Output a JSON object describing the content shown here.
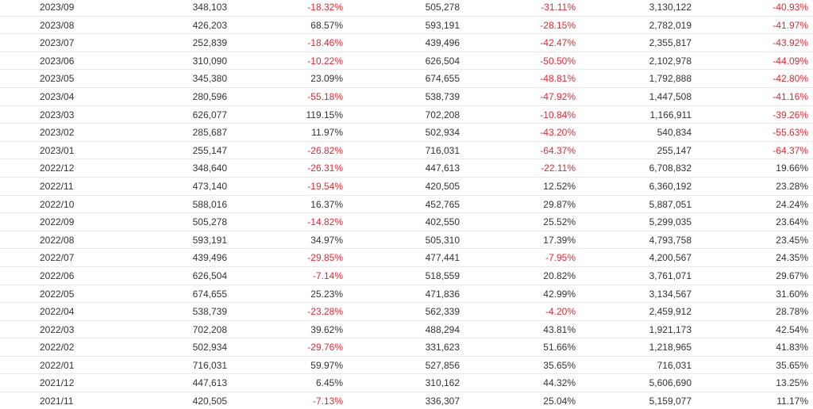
{
  "colors": {
    "negative": "#f5222d",
    "text": "#333333",
    "divider": "#e9e9e9"
  },
  "table": {
    "rows": [
      [
        "2023/09",
        "348,103",
        "-18.32%",
        "505,278",
        "-31.11%",
        "3,130,122",
        "-40.93%"
      ],
      [
        "2023/08",
        "426,203",
        "68.57%",
        "593,191",
        "-28.15%",
        "2,782,019",
        "-41.97%"
      ],
      [
        "2023/07",
        "252,839",
        "-18.46%",
        "439,496",
        "-42.47%",
        "2,355,817",
        "-43.92%"
      ],
      [
        "2023/06",
        "310,090",
        "-10.22%",
        "626,504",
        "-50.50%",
        "2,102,978",
        "-44.09%"
      ],
      [
        "2023/05",
        "345,380",
        "23.09%",
        "674,655",
        "-48.81%",
        "1,792,888",
        "-42.80%"
      ],
      [
        "2023/04",
        "280,596",
        "-55.18%",
        "538,739",
        "-47.92%",
        "1,447,508",
        "-41.16%"
      ],
      [
        "2023/03",
        "626,077",
        "119.15%",
        "702,208",
        "-10.84%",
        "1,166,911",
        "-39.26%"
      ],
      [
        "2023/02",
        "285,687",
        "11.97%",
        "502,934",
        "-43.20%",
        "540,834",
        "-55.63%"
      ],
      [
        "2023/01",
        "255,147",
        "-26.82%",
        "716,031",
        "-64.37%",
        "255,147",
        "-64.37%"
      ],
      [
        "2022/12",
        "348,640",
        "-26.31%",
        "447,613",
        "-22.11%",
        "6,708,832",
        "19.66%"
      ],
      [
        "2022/11",
        "473,140",
        "-19.54%",
        "420,505",
        "12.52%",
        "6,360,192",
        "23.28%"
      ],
      [
        "2022/10",
        "588,016",
        "16.37%",
        "452,765",
        "29.87%",
        "5,887,051",
        "24.24%"
      ],
      [
        "2022/09",
        "505,278",
        "-14.82%",
        "402,550",
        "25.52%",
        "5,299,035",
        "23.64%"
      ],
      [
        "2022/08",
        "593,191",
        "34.97%",
        "505,310",
        "17.39%",
        "4,793,758",
        "23.45%"
      ],
      [
        "2022/07",
        "439,496",
        "-29.85%",
        "477,441",
        "-7.95%",
        "4,200,567",
        "24.35%"
      ],
      [
        "2022/06",
        "626,504",
        "-7.14%",
        "518,559",
        "20.82%",
        "3,761,071",
        "29.67%"
      ],
      [
        "2022/05",
        "674,655",
        "25.23%",
        "471,836",
        "42.99%",
        "3,134,567",
        "31.60%"
      ],
      [
        "2022/04",
        "538,739",
        "-23.28%",
        "562,339",
        "-4.20%",
        "2,459,912",
        "28.78%"
      ],
      [
        "2022/03",
        "702,208",
        "39.62%",
        "488,294",
        "43.81%",
        "1,921,173",
        "42.54%"
      ],
      [
        "2022/02",
        "502,934",
        "-29.76%",
        "331,623",
        "51.66%",
        "1,218,965",
        "41.83%"
      ],
      [
        "2022/01",
        "716,031",
        "59.97%",
        "527,856",
        "35.65%",
        "716,031",
        "35.65%"
      ],
      [
        "2021/12",
        "447,613",
        "6.45%",
        "310,162",
        "44.32%",
        "5,606,690",
        "13.25%"
      ],
      [
        "2021/11",
        "420,505",
        "-7.13%",
        "336,307",
        "25.04%",
        "5,159,077",
        "11.17%"
      ]
    ]
  }
}
